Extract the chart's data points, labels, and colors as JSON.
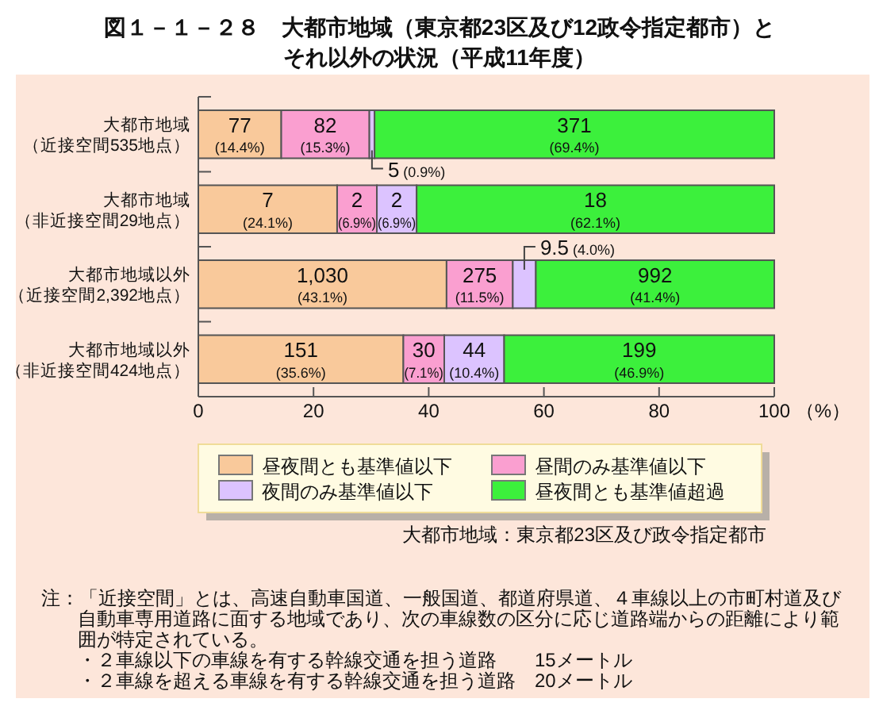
{
  "chart_data": {
    "type": "bar",
    "orientation": "horizontal",
    "stacked": true,
    "title": "図１－１－２８　大都市地域（東京都23区及び12政令指定都市）とそれ以外の状況（平成11年度）",
    "xlabel": "（%）",
    "categories": [
      "大都市地域（近接空間535地点）",
      "大都市地域（非近接空間29地点）",
      "大都市地域以外（近接空間2,392地点）",
      "大都市地域以外（非近接空間424地点）"
    ],
    "series": [
      {
        "name": "昼夜間とも基準値以下",
        "color": "#f9c99b",
        "values": [
          14.4,
          24.1,
          43.1,
          35.6
        ],
        "value_labels": [
          "77\n(14.4%)",
          "7\n(24.1%)",
          "1,030\n(43.1%)",
          "151\n(35.6%)"
        ]
      },
      {
        "name": "昼間のみ基準値以下",
        "color": "#fa9fd0",
        "values": [
          15.3,
          6.9,
          11.5,
          7.1
        ],
        "value_labels": [
          "82\n(15.3%)",
          "2\n(6.9%)",
          "275\n(11.5%)",
          "30\n(7.1%)"
        ]
      },
      {
        "name": "夜間のみ基準値以下",
        "color": "#dcc3ff",
        "values": [
          0.9,
          6.9,
          4.0,
          10.4
        ],
        "value_labels": [
          "5\n(0.9%)",
          "2\n(6.9%)",
          "9.5\n(4.0%)",
          "44\n(10.4%)"
        ]
      },
      {
        "name": "昼夜間とも基準値超過",
        "color": "#3cf03c",
        "values": [
          69.4,
          62.1,
          41.4,
          46.9
        ],
        "value_labels": [
          "371\n(69.4%)",
          "18\n(62.1%)",
          "992\n(41.4%)",
          "199\n(46.9%)"
        ]
      }
    ],
    "xlim": [
      0,
      100
    ],
    "xticks": [
      0,
      20,
      40,
      60,
      80,
      100
    ],
    "legend": "bottom",
    "annotations": [
      "大都市地域：東京都23区及び政令指定都市",
      "注：「近接空間」とは、高速自動車国道、一般国道、都道府県道、４車線以上の市町村道及び自動車専用道路に面する地域であり、次の車線数の区分に応じ道路端からの距離により範囲が特定されている。",
      "・２車線以下の車線を有する幹線交通を担う道路　　15メートル",
      "・２車線を超える車線を有する幹線交通を担う道路　20メートル"
    ]
  }
}
